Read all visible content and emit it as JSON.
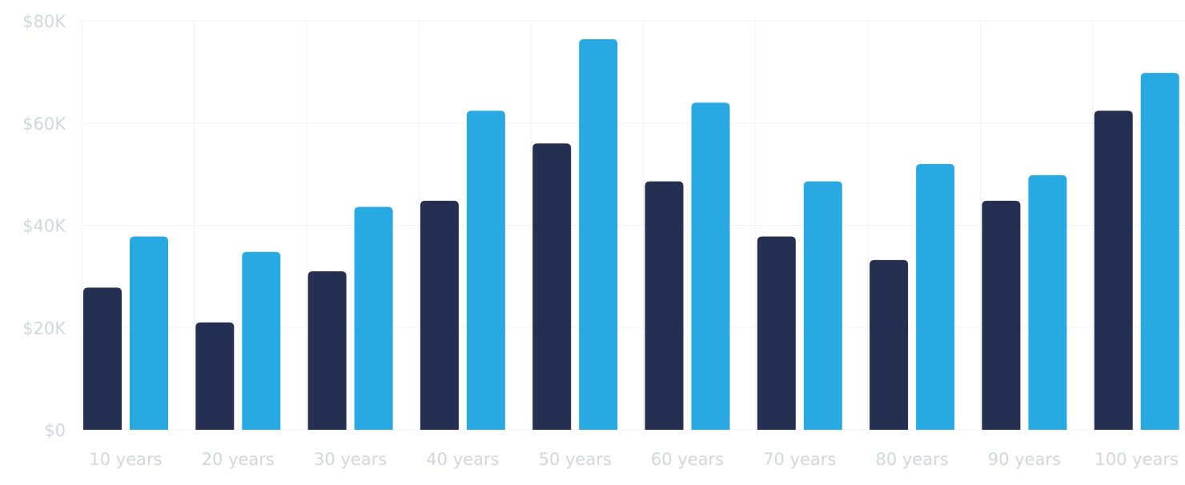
{
  "chart_data": {
    "type": "bar",
    "title": "",
    "xlabel": "",
    "ylabel": "",
    "categories": [
      "10 years",
      "20 years",
      "30 years",
      "40 years",
      "50 years",
      "60 years",
      "70 years",
      "80 years",
      "90 years",
      "100 years"
    ],
    "series": [
      {
        "color": "#252f52",
        "values": [
          27800,
          21000,
          31000,
          44800,
          56000,
          48600,
          37800,
          33200,
          44800,
          62400
        ]
      },
      {
        "color": "#29a9e1",
        "values": [
          37800,
          34800,
          43600,
          62400,
          76400,
          64000,
          48600,
          52000,
          49800,
          69800
        ]
      }
    ],
    "ylim": [
      0,
      80000
    ],
    "yticks": [
      0,
      20000,
      40000,
      60000,
      80000
    ],
    "ytick_labels": [
      "$0",
      "$20K",
      "$40K",
      "$60K",
      "$80K"
    ],
    "grid": true,
    "legend": false
  }
}
